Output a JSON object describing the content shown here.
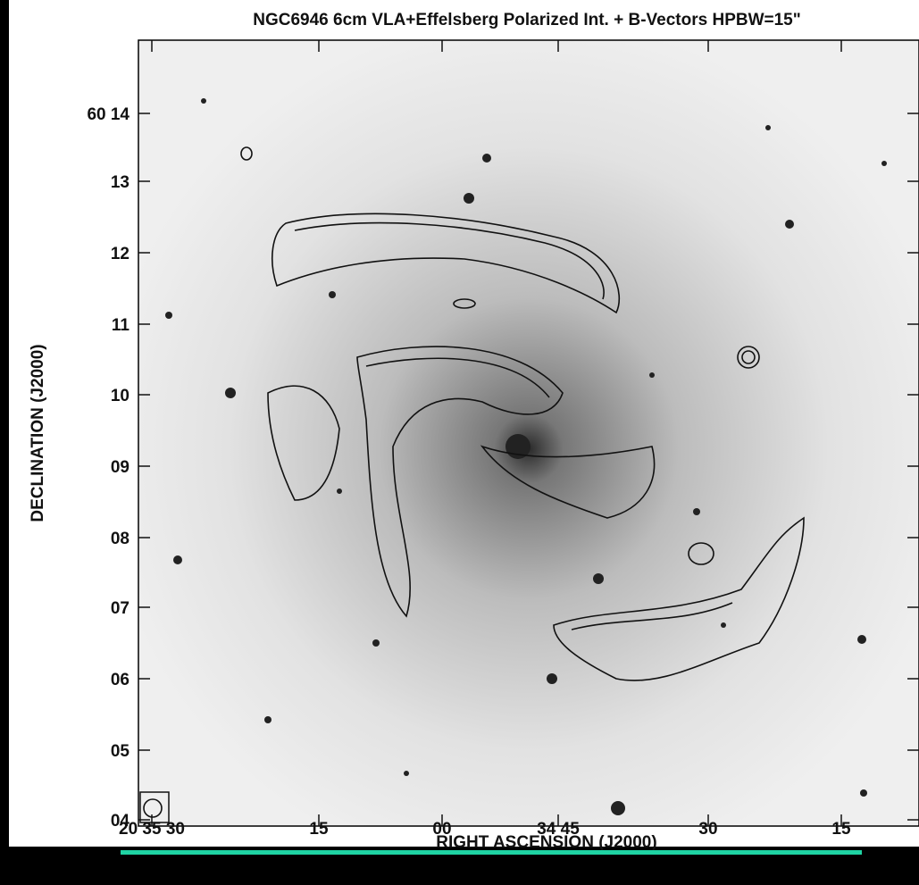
{
  "figure": {
    "title": "NGC6946   6cm   VLA+Effelsberg   Polarized Int. + B-Vectors   HPBW=15\"",
    "y_axis_label": "DECLINATION (J2000)",
    "x_axis_label": "RIGHT ASCENSION (J2000)",
    "y_tick_labels": [
      "60 14",
      "13",
      "12",
      "11",
      "10",
      "09",
      "08",
      "07",
      "06",
      "05",
      "04"
    ],
    "x_tick_labels": [
      "20 35 30",
      "15",
      "00",
      "34 45",
      "30",
      "15"
    ]
  }
}
